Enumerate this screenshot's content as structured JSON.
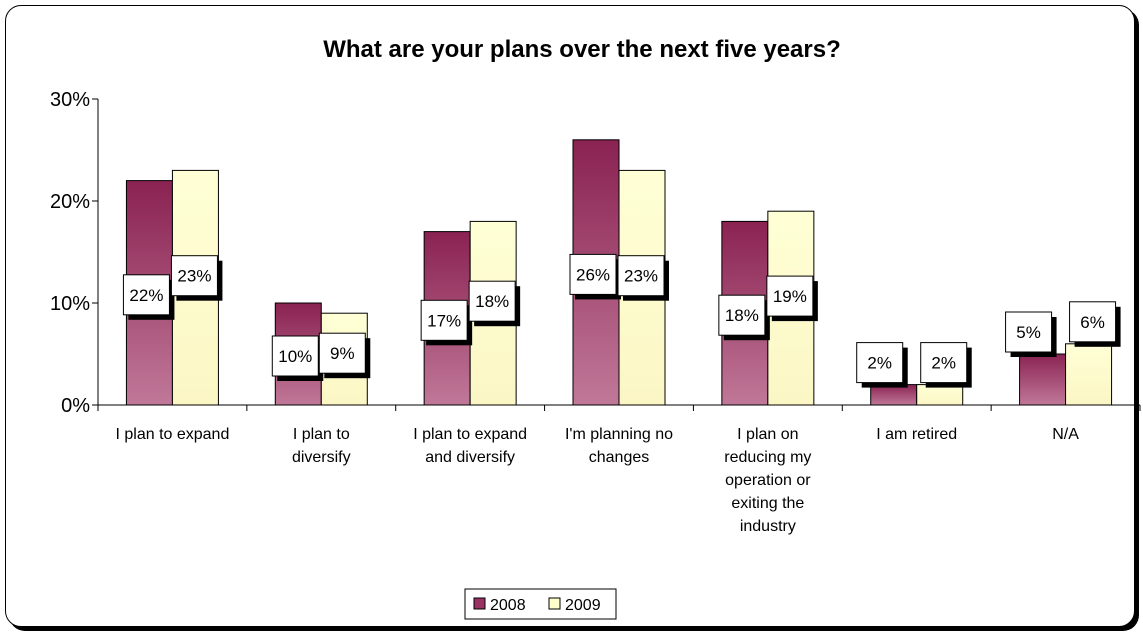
{
  "chart_data": {
    "type": "bar",
    "title": "What are your plans over the next five years?",
    "categories": [
      [
        "I plan to expand"
      ],
      [
        "I plan to",
        "diversify"
      ],
      [
        "I plan to expand",
        "and diversify"
      ],
      [
        "I'm planning no",
        "changes"
      ],
      [
        "I plan on",
        "reducing my",
        "operation or",
        "exiting the",
        "industry"
      ],
      [
        "I am retired"
      ],
      [
        "N/A"
      ]
    ],
    "series": [
      {
        "name": "2008",
        "values": [
          22,
          10,
          17,
          26,
          18,
          2,
          5
        ],
        "labels": [
          "22%",
          "10%",
          "17%",
          "26%",
          "18%",
          "2%",
          "5%"
        ]
      },
      {
        "name": "2009",
        "values": [
          23,
          9,
          18,
          23,
          19,
          2,
          6
        ],
        "labels": [
          "23%",
          "9%",
          "18%",
          "23%",
          "19%",
          "2%",
          "6%"
        ]
      }
    ],
    "ylim": [
      0,
      30
    ],
    "yticks": [
      "0%",
      "10%",
      "20%",
      "30%"
    ],
    "colors": {
      "2008": "#993366",
      "2009": "#FFFFCC"
    },
    "legend": "bottom",
    "grid": false
  }
}
